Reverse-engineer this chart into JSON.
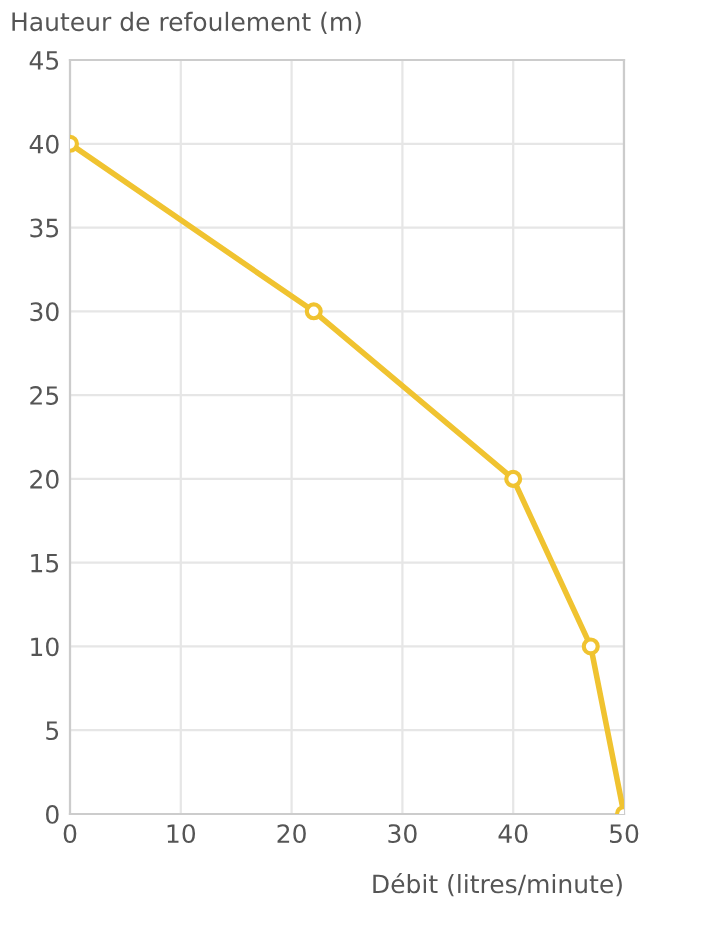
{
  "chart_data": {
    "type": "line",
    "xlabel": "Débit (litres/minute)",
    "ylabel": "Hauteur de refoulement (m)",
    "x": [
      0,
      22,
      40,
      47,
      50
    ],
    "series": [
      {
        "color": "#f0c330",
        "values": [
          40,
          30,
          20,
          10,
          0
        ]
      }
    ],
    "xlim": [
      0,
      50
    ],
    "xticks": [
      0,
      10,
      20,
      30,
      40,
      50
    ],
    "ylim": [
      0,
      45
    ],
    "yticks": [
      0,
      5,
      10,
      15,
      20,
      25,
      30,
      35,
      40,
      45
    ],
    "grid": true,
    "marker": "circle",
    "line_style": "solid"
  }
}
